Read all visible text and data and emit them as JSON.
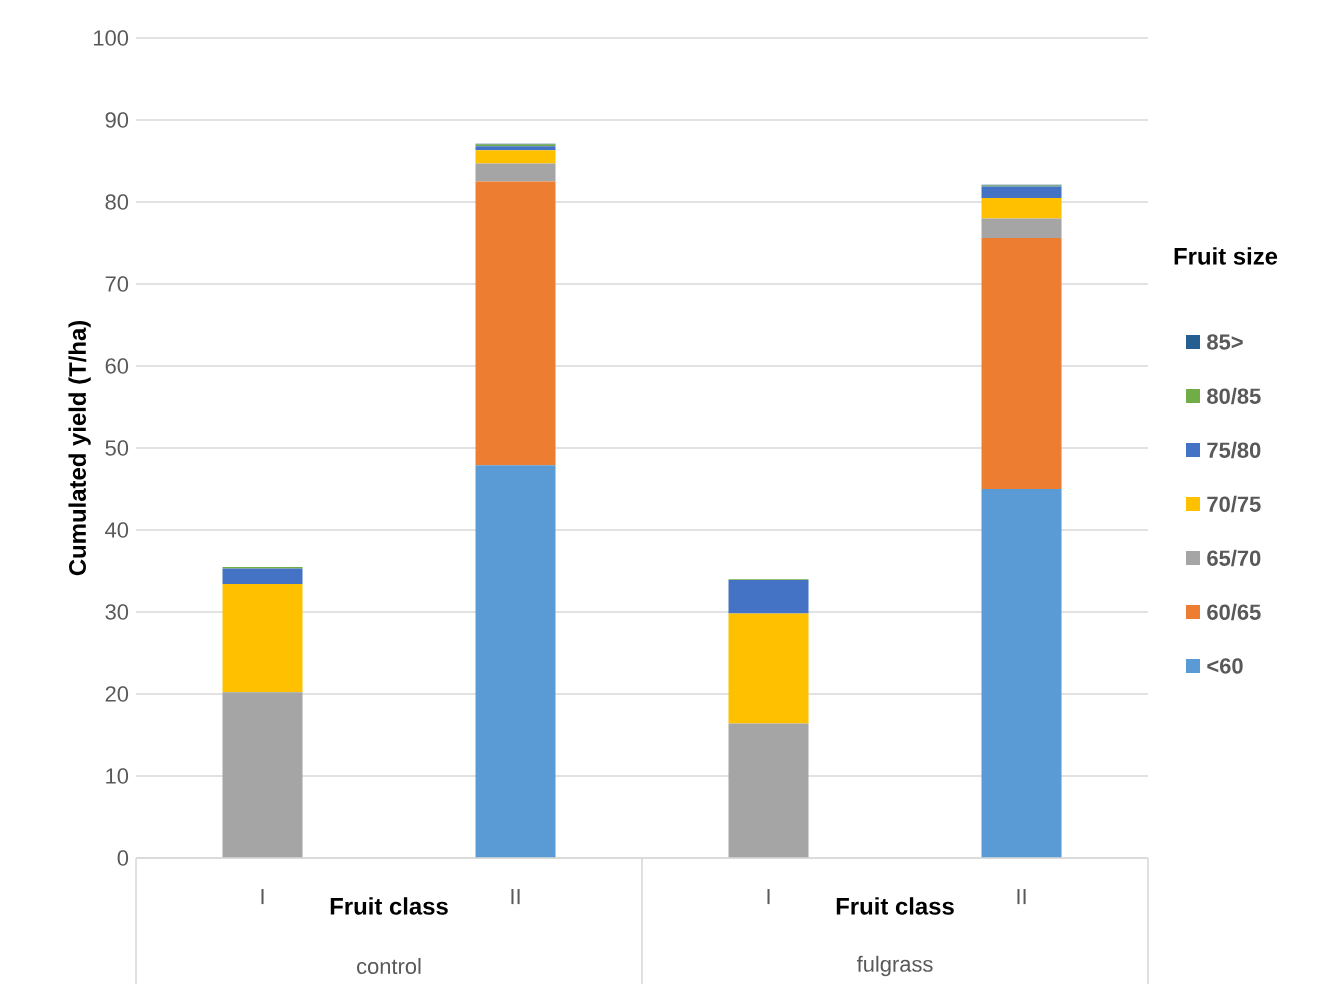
{
  "chart_data": {
    "type": "bar",
    "stacked": true,
    "ylabel": "Cumulated yield (T/ha)",
    "legend_title": "Fruit size",
    "legend": "right",
    "grid": "y",
    "categories": [
      "I",
      "II",
      "I",
      "II"
    ],
    "annotations": [
      "Fruit class",
      "control",
      "Fruit class",
      "fulgrass"
    ],
    "ylim": [
      0,
      100
    ],
    "yticks": [
      0,
      10,
      20,
      30,
      40,
      50,
      60,
      70,
      80,
      90,
      100
    ],
    "series": [
      {
        "name": "<60",
        "color": "#5b9bd5",
        "values": [
          0,
          47.9,
          0,
          45.0
        ]
      },
      {
        "name": "60/65",
        "color": "#ed7d31",
        "values": [
          0,
          34.6,
          0,
          30.6
        ]
      },
      {
        "name": "65/70",
        "color": "#a5a5a5",
        "values": [
          20.2,
          2.2,
          16.4,
          2.4
        ]
      },
      {
        "name": "70/75",
        "color": "#ffc000",
        "values": [
          13.2,
          1.6,
          13.4,
          2.5
        ]
      },
      {
        "name": "75/80",
        "color": "#4472c4",
        "values": [
          1.9,
          0.5,
          4.1,
          1.4
        ]
      },
      {
        "name": "80/85",
        "color": "#70ad47",
        "values": [
          0.2,
          0.2,
          0.1,
          0.1
        ]
      },
      {
        "name": "85>",
        "color": "#255e91",
        "values": [
          0,
          0.1,
          0,
          0.1
        ]
      }
    ]
  }
}
